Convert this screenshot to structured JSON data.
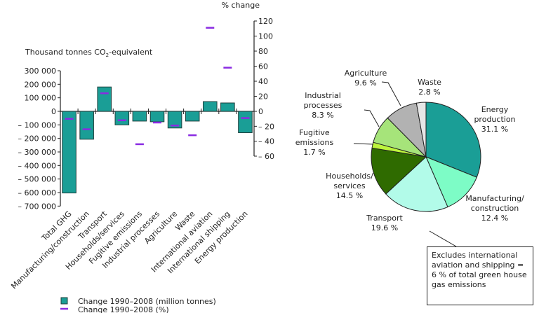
{
  "chart_data": [
    {
      "type": "bar",
      "title": "",
      "ylabel": "Thousand tonnes CO2-equivalent",
      "ylabel_parts": {
        "prefix": "Thousand tonnes CO",
        "sub": "2",
        "suffix": "-equivalent"
      },
      "y2label": "% change",
      "categories": [
        "Total GHG",
        "Manufacturing/construction",
        "Transport",
        "Households/services",
        "Fugitive emissions",
        "Industrial processes",
        "Agriculture",
        "Waste",
        "International aviation",
        "International shipping",
        "Energy production"
      ],
      "series": [
        {
          "name": "Change 1990–2008 (million tonnes)",
          "axis": "left",
          "kind": "bar",
          "color": "#1a9e96",
          "values": [
            -603000,
            -206000,
            180000,
            -100000,
            -72000,
            -77000,
            -123000,
            -72000,
            72000,
            62000,
            -158000
          ]
        },
        {
          "name": "Change 1990–2008 (%)",
          "axis": "right",
          "kind": "marker",
          "color": "#8a2be2",
          "values": [
            -10,
            -24,
            24,
            -12,
            -44,
            -15,
            -19,
            -32,
            111,
            58,
            -9
          ]
        }
      ],
      "ylim": [
        -700000,
        300000
      ],
      "y2lim": [
        -60,
        120
      ],
      "yticks": [
        300000,
        200000,
        100000,
        0,
        -100000,
        -200000,
        -300000,
        -400000,
        -500000,
        -600000,
        -700000
      ],
      "ytick_labels": [
        "300 000",
        "200 000",
        "100 000",
        "0",
        "– 100 000",
        "– 200 000",
        "– 300 000",
        "– 400 000",
        "– 500 000",
        "– 600 000",
        "– 700 000"
      ],
      "y2ticks": [
        120,
        100,
        80,
        60,
        40,
        20,
        0,
        -20,
        -40,
        -60
      ],
      "y2tick_labels": [
        "120",
        "100",
        "80",
        "60",
        "40",
        "20",
        "0",
        "– 20",
        "– 40",
        "– 60"
      ],
      "grid": false,
      "legend": {
        "placement": "bottom",
        "entries": [
          "Change 1990–2008 (million tonnes)",
          "Change 1990–2008 (%)"
        ]
      }
    },
    {
      "type": "pie",
      "title": "",
      "slices": [
        {
          "label": "Energy production",
          "lines": [
            "Energy",
            "production",
            "31.1 %"
          ],
          "value": 31.1,
          "color": "#1a9e96"
        },
        {
          "label": "Manufacturing/construction",
          "lines": [
            "Manufacturing/",
            "construction",
            "12.4 %"
          ],
          "value": 12.4,
          "color": "#7dfcc6"
        },
        {
          "label": "Transport",
          "lines": [
            "Transport",
            "19.6 %"
          ],
          "value": 19.6,
          "color": "#b2fbe9"
        },
        {
          "label": "Households/services",
          "lines": [
            "Households/",
            "services",
            "14.5 %"
          ],
          "value": 14.5,
          "color": "#2f6b00"
        },
        {
          "label": "Fugitive emissions",
          "lines": [
            "Fugitive",
            "emissions",
            "1.7 %"
          ],
          "value": 1.7,
          "color": "#bdf53c"
        },
        {
          "label": "Industrial processes",
          "lines": [
            "Industrial",
            "processes",
            "8.3 %"
          ],
          "value": 8.3,
          "color": "#a6e47a"
        },
        {
          "label": "Agriculture",
          "lines": [
            "Agriculture",
            "9.6 %"
          ],
          "value": 9.6,
          "color": "#b2b2b2"
        },
        {
          "label": "Waste",
          "lines": [
            "Waste",
            "2.8 %"
          ],
          "value": 2.8,
          "color": "#e6e6e6"
        }
      ],
      "note": "Excludes international aviation and shipping = 6 % of total green house gas emissions"
    }
  ]
}
